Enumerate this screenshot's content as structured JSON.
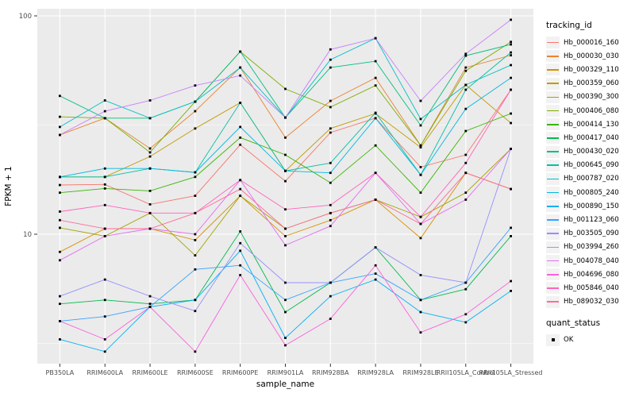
{
  "chart_data": {
    "type": "line",
    "title": "",
    "xlabel": "sample_name",
    "ylabel": "FPKM + 1",
    "y_scale": "log10",
    "ylim": [
      2.5,
      110
    ],
    "grid": "on",
    "legend_position": "right",
    "legend_title": "tracking_id",
    "y_ticks": [
      {
        "label": "100",
        "value": 100
      },
      {
        "label": "10",
        "value": 10
      }
    ],
    "categories": [
      "PB350LA",
      "RRIM600LA",
      "RRIM600LE",
      "RRIM600SE",
      "RRIM600PE",
      "RRIM901LA",
      "RRIM928BA",
      "RRIM928LA",
      "RRIM928LE",
      "RRII105LA_Control",
      "RRII105LA_Stressed"
    ],
    "series": [
      {
        "name": "Hb_000016_160",
        "color": "#F8766D",
        "values": [
          16.8,
          16.9,
          13.7,
          15.0,
          25.7,
          17.5,
          29.2,
          34.0,
          20.3,
          23.1,
          45.9
        ]
      },
      {
        "name": "Hb_000030_030",
        "color": "#EA8331",
        "values": [
          28.5,
          34.0,
          24.7,
          36.6,
          58.0,
          27.7,
          40.8,
          52.0,
          25.5,
          58.0,
          66.0
        ]
      },
      {
        "name": "Hb_000329_110",
        "color": "#D89000",
        "values": [
          8.3,
          10.6,
          10.6,
          9.4,
          15.0,
          9.8,
          11.6,
          14.4,
          9.6,
          19.1,
          16.1
        ]
      },
      {
        "name": "Hb_000359_060",
        "color": "#C09B00",
        "values": [
          18.3,
          18.3,
          22.7,
          30.5,
          40.0,
          19.5,
          30.5,
          35.7,
          25.0,
          48.3,
          32.3
        ]
      },
      {
        "name": "Hb_000390_300",
        "color": "#A3A500",
        "values": [
          10.7,
          9.8,
          12.5,
          8.0,
          15.0,
          10.6,
          12.5,
          14.4,
          12.0,
          15.5,
          24.6
        ]
      },
      {
        "name": "Hb_000406_080",
        "color": "#7CAE00",
        "values": [
          34.5,
          34.0,
          23.7,
          40.5,
          68.6,
          46.3,
          38.2,
          48.0,
          25.5,
          56.0,
          76.0
        ]
      },
      {
        "name": "Hb_000414_130",
        "color": "#39B600",
        "values": [
          15.5,
          16.2,
          15.8,
          18.3,
          27.7,
          23.1,
          17.2,
          25.5,
          15.5,
          29.7,
          35.7
        ]
      },
      {
        "name": "Hb_000417_040",
        "color": "#00BB4E",
        "values": [
          4.8,
          5.0,
          4.8,
          5.0,
          10.3,
          4.4,
          6.0,
          8.7,
          5.0,
          5.6,
          9.8
        ]
      },
      {
        "name": "Hb_000430_020",
        "color": "#00BF7D",
        "values": [
          43.0,
          34.0,
          34.0,
          40.5,
          68.6,
          34.2,
          58.0,
          62.0,
          31.5,
          65.7,
          74.0
        ]
      },
      {
        "name": "Hb_000645_090",
        "color": "#00C1A3",
        "values": [
          18.3,
          18.3,
          20.0,
          19.2,
          40.0,
          19.5,
          21.2,
          36.0,
          18.7,
          45.9,
          68.0
        ]
      },
      {
        "name": "Hb_000787_020",
        "color": "#00BFC4",
        "values": [
          31.0,
          41.0,
          34.0,
          40.5,
          58.0,
          34.2,
          63.0,
          79.0,
          33.7,
          48.3,
          59.5
        ]
      },
      {
        "name": "Hb_000805_240",
        "color": "#00BAE0",
        "values": [
          18.3,
          20.0,
          20.0,
          19.2,
          31.0,
          19.5,
          19.1,
          34.0,
          18.7,
          37.5,
          52.0
        ]
      },
      {
        "name": "Hb_000890_150",
        "color": "#00B0F6",
        "values": [
          3.3,
          2.9,
          4.65,
          5.0,
          8.4,
          3.35,
          5.2,
          6.2,
          4.4,
          3.95,
          5.5
        ]
      },
      {
        "name": "Hb_001123_060",
        "color": "#35A2FF",
        "values": [
          4.0,
          4.2,
          4.65,
          6.9,
          7.2,
          5.0,
          6.0,
          6.6,
          5.0,
          6.0,
          10.7
        ]
      },
      {
        "name": "Hb_003505_090",
        "color": "#9590FF",
        "values": [
          5.2,
          6.2,
          5.2,
          4.45,
          9.1,
          6.0,
          6.0,
          8.7,
          6.5,
          6.0,
          24.6
        ]
      },
      {
        "name": "Hb_003994_260",
        "color": "#C77CFF",
        "values": [
          28.5,
          36.6,
          41.0,
          48.0,
          53.3,
          34.2,
          70.2,
          79.0,
          40.8,
          67.0,
          96.0
        ]
      },
      {
        "name": "Hb_004078_040",
        "color": "#E76BF3",
        "values": [
          7.6,
          9.8,
          10.6,
          10.0,
          17.7,
          8.9,
          10.9,
          19.1,
          11.15,
          14.4,
          24.6
        ]
      },
      {
        "name": "Hb_004696_080",
        "color": "#FA62DB",
        "values": [
          4.0,
          3.3,
          4.65,
          2.9,
          6.5,
          3.1,
          4.1,
          7.2,
          3.55,
          4.3,
          6.1
        ]
      },
      {
        "name": "Hb_005846_040",
        "color": "#FF62BC",
        "values": [
          12.7,
          13.6,
          12.5,
          12.5,
          17.7,
          13.0,
          13.6,
          19.1,
          12.0,
          21.2,
          45.9
        ]
      },
      {
        "name": "Hb_089032_030",
        "color": "#FF6A98",
        "values": [
          11.6,
          10.6,
          10.6,
          12.5,
          16.1,
          10.6,
          12.5,
          14.4,
          11.15,
          19.1,
          16.1
        ]
      }
    ],
    "quant_legend": {
      "title": "quant_status",
      "items": [
        {
          "label": "OK",
          "marker": "black-square"
        }
      ]
    }
  },
  "style_colors": {
    "panel_background": "#EBEBEB",
    "gridline": "#FFFFFF",
    "tick_text": "#4D4D4D",
    "marker": "#000000",
    "legend_key_background": "#F2F2F2"
  }
}
